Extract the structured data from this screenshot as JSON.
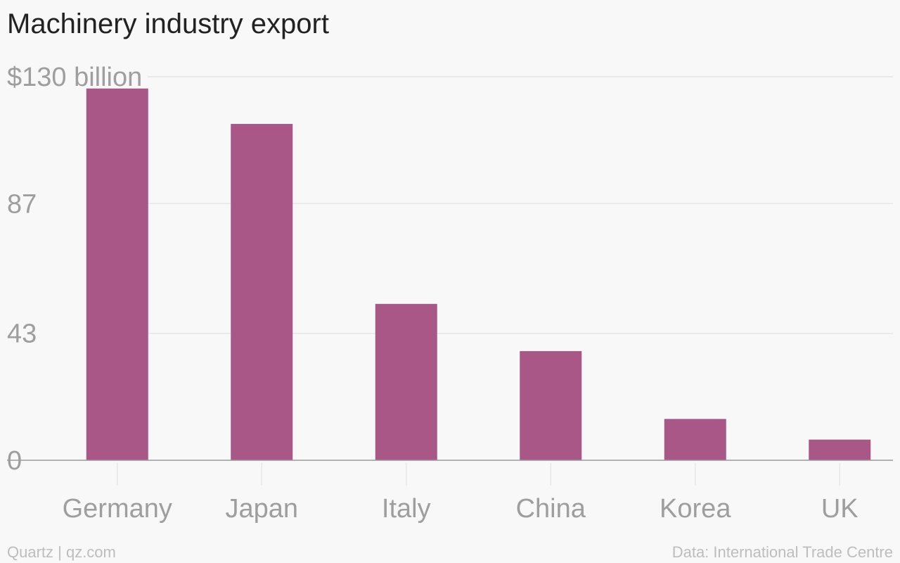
{
  "title": "Machinery industry export",
  "footer": {
    "left": "Quartz | qz.com",
    "right": "Data: International Trade Centre"
  },
  "colors": {
    "bar": "#a85787",
    "grid": "#e6e6e6",
    "axis": "#999999",
    "tick_text": "#9e9e9e"
  },
  "chart_data": {
    "type": "bar",
    "title": "Machinery industry export",
    "categories": [
      "Germany",
      "Japan",
      "Italy",
      "China",
      "Korea",
      "UK"
    ],
    "values": [
      126,
      114,
      53,
      37,
      14,
      7
    ],
    "yticks": [
      0,
      43,
      87,
      130
    ],
    "ytick_labels": [
      "0",
      "43",
      "87",
      "$130 billion"
    ],
    "ylim": [
      0,
      130
    ],
    "xlabel": "",
    "ylabel": "",
    "grid": true
  }
}
